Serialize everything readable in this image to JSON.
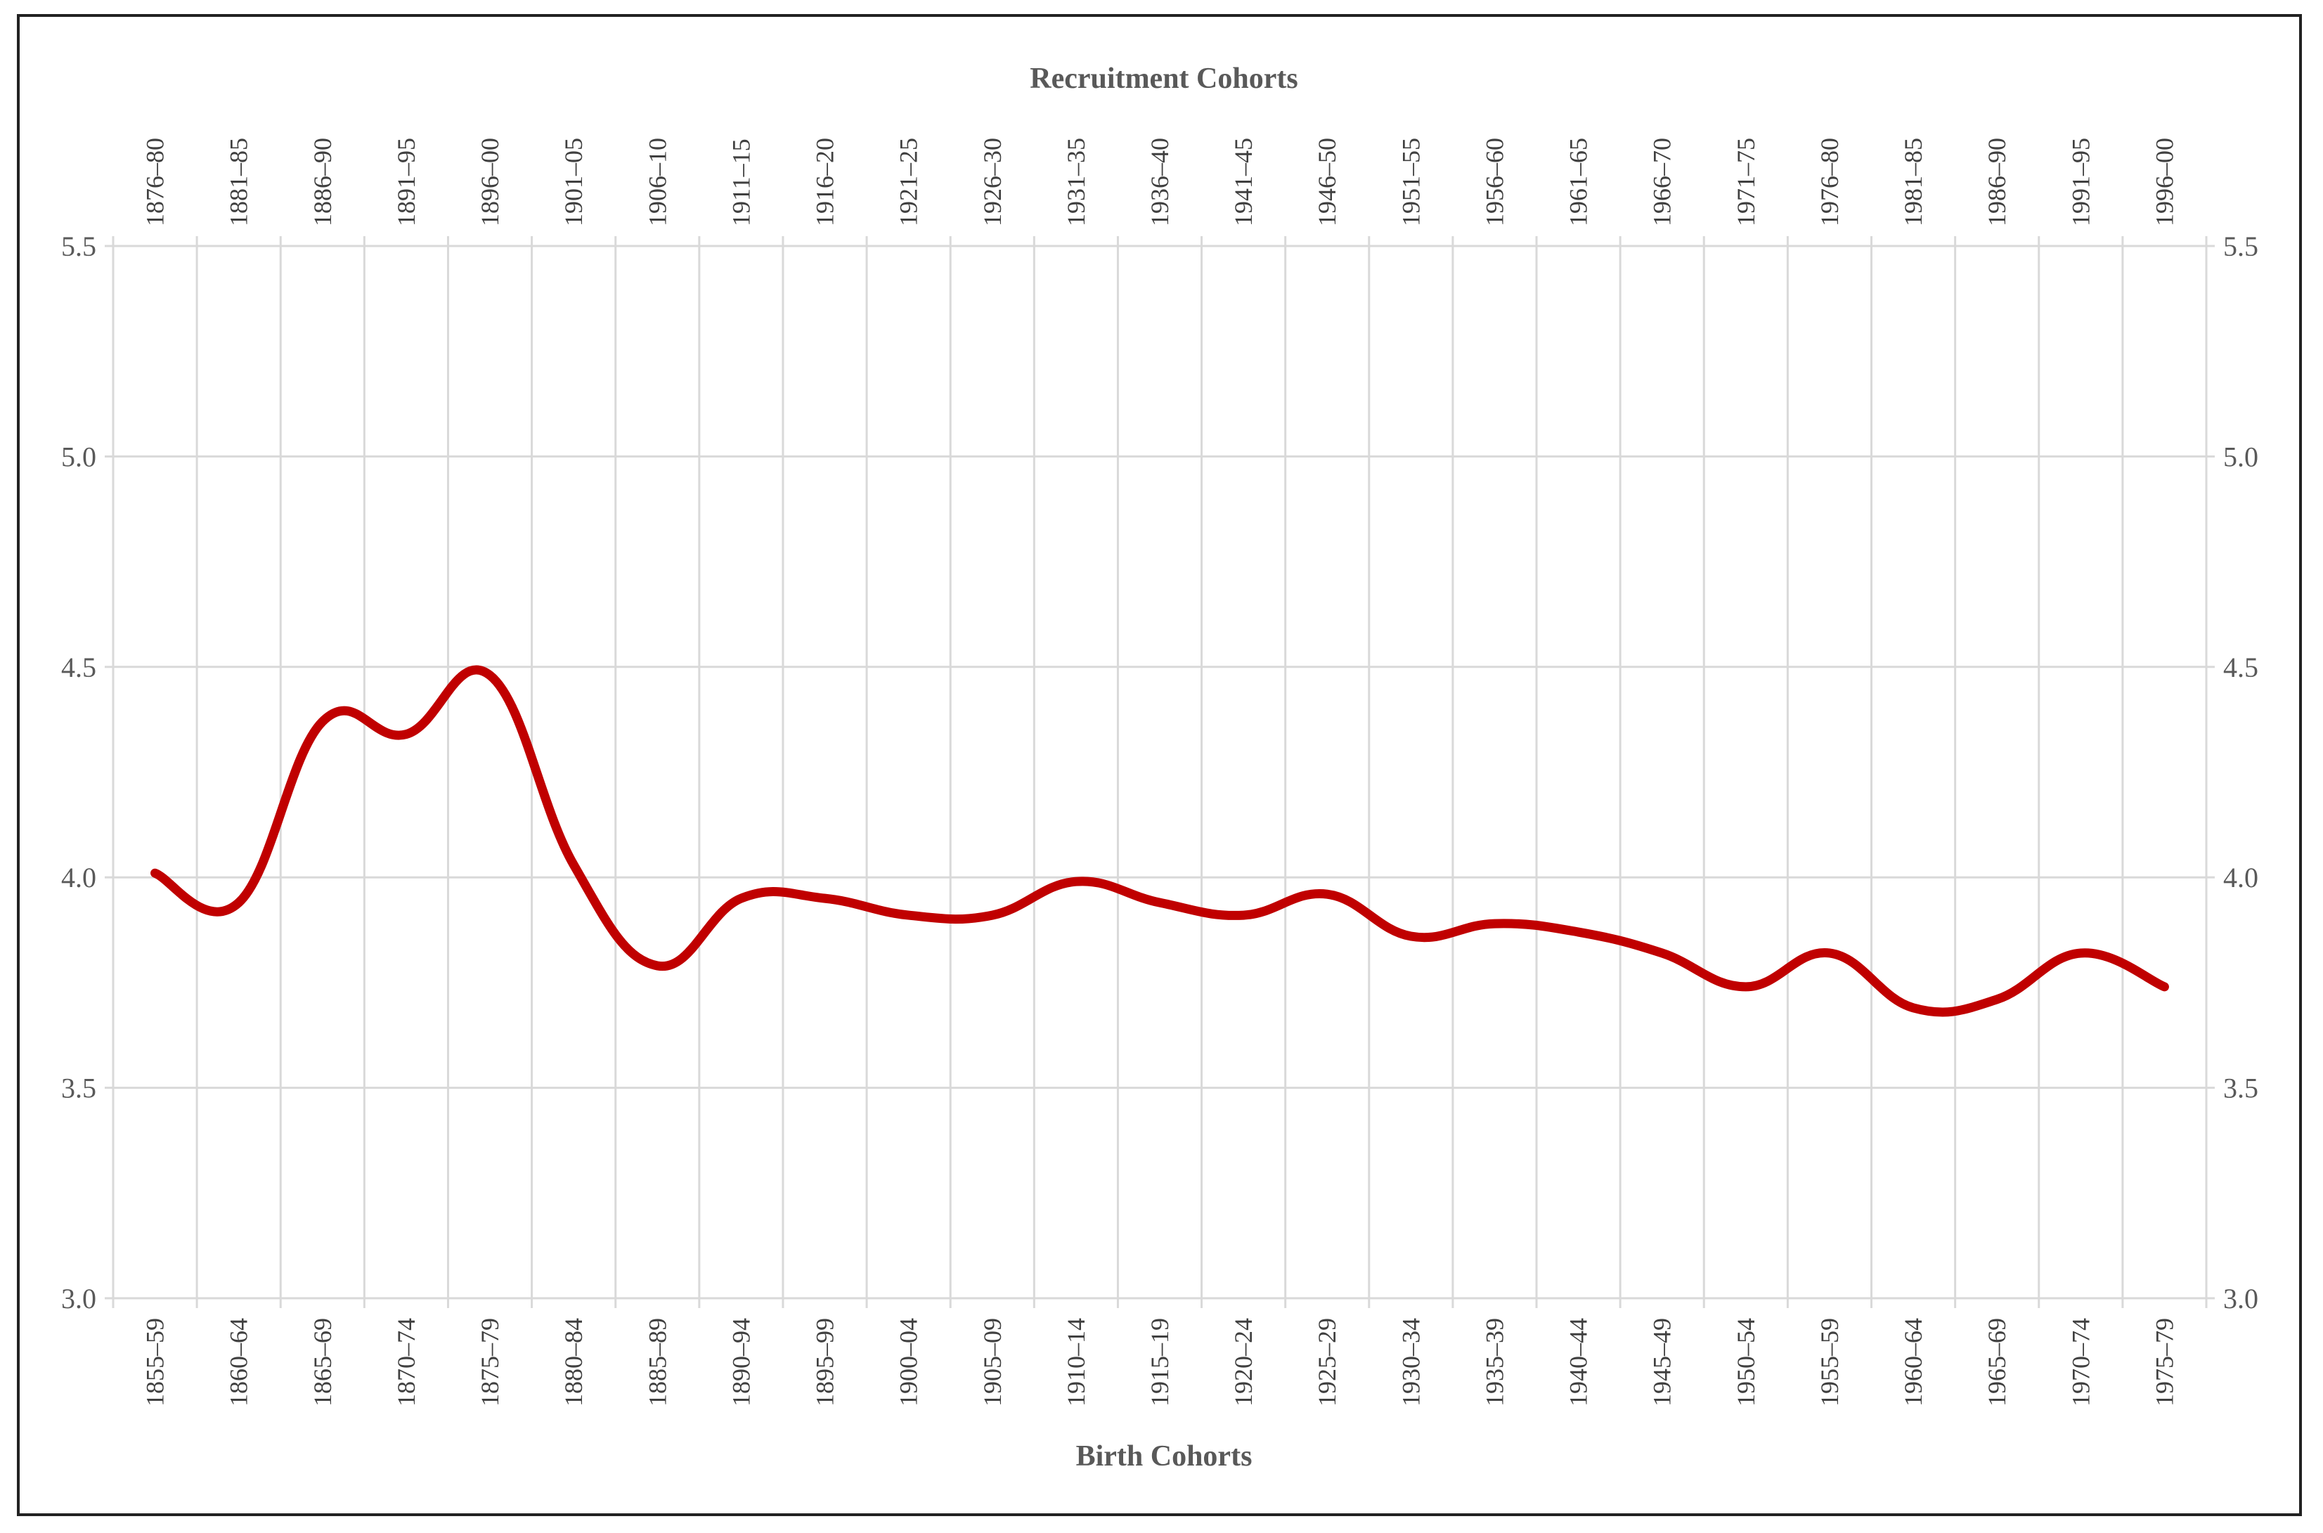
{
  "chart_data": {
    "type": "line",
    "title": "",
    "xlabel": "Birth Cohorts",
    "x2label": "Recruitment Cohorts",
    "ylabel": "",
    "ylim": [
      3.0,
      5.5
    ],
    "yticks": [
      "3.0",
      "3.5",
      "4.0",
      "4.5",
      "5.0",
      "5.5"
    ],
    "grid": true,
    "legend": "none",
    "line_color": "#c00000",
    "grid_color": "#d9d9d9",
    "categories": [
      "1855–59",
      "1860–64",
      "1865–69",
      "1870–74",
      "1875–79",
      "1880–84",
      "1885–89",
      "1890–94",
      "1895–99",
      "1900–04",
      "1905–09",
      "1910–14",
      "1915–19",
      "1920–24",
      "1925–29",
      "1930–34",
      "1935–39",
      "1940–44",
      "1945–49",
      "1950–54",
      "1955–59",
      "1960–64",
      "1965–69",
      "1970–74",
      "1975–79"
    ],
    "top_categories": [
      "1876–80",
      "1881–85",
      "1886–90",
      "1891–95",
      "1896–00",
      "1901–05",
      "1906–10",
      "1911–15",
      "1916–20",
      "1921–25",
      "1926–30",
      "1931–35",
      "1936–40",
      "1941–45",
      "1946–50",
      "1951–55",
      "1956–60",
      "1961–65",
      "1966–70",
      "1971–75",
      "1976–80",
      "1981–85",
      "1986–90",
      "1991–95",
      "1996–00"
    ],
    "series": [
      {
        "values": [
          4.01,
          3.94,
          4.37,
          4.34,
          4.48,
          4.03,
          3.79,
          3.95,
          3.95,
          3.91,
          3.91,
          3.99,
          3.94,
          3.91,
          3.96,
          3.86,
          3.89,
          3.87,
          3.82,
          3.74,
          3.82,
          3.69,
          3.71,
          3.82,
          3.74
        ]
      }
    ]
  }
}
